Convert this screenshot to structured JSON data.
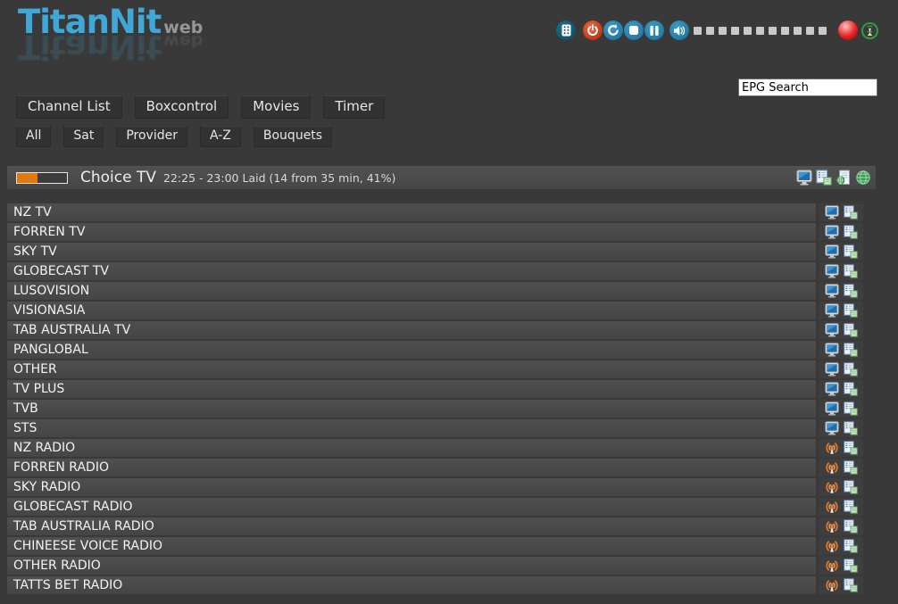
{
  "logo": {
    "title": "TitanNit",
    "suffix": "web"
  },
  "toolbar": {
    "volume_segments": 11,
    "icons": [
      "remote-control-icon",
      "power-icon",
      "restart-icon",
      "stop-icon",
      "pause-icon",
      "volume-icon",
      "record-indicator-icon",
      "signal-indicator-icon"
    ]
  },
  "search": {
    "value": "EPG Search"
  },
  "nav": {
    "main": [
      "Channel List",
      "Boxcontrol",
      "Movies",
      "Timer"
    ],
    "filters": [
      "All",
      "Sat",
      "Provider",
      "A-Z",
      "Bouquets"
    ]
  },
  "now_playing": {
    "channel": "Choice TV",
    "info": "22:25 - 23:00 Laid (14 from 35 min, 41%)",
    "progress_percent": 41,
    "action_icons": [
      "tv-screen-icon",
      "copy-epg-icon",
      "web-document-icon",
      "globe-icon"
    ]
  },
  "channels": [
    {
      "name": "NZ TV",
      "type": "tv"
    },
    {
      "name": "FORREN TV",
      "type": "tv"
    },
    {
      "name": "SKY TV",
      "type": "tv"
    },
    {
      "name": "GLOBECAST TV",
      "type": "tv"
    },
    {
      "name": "LUSOVISION",
      "type": "tv"
    },
    {
      "name": "VISIONASIA",
      "type": "tv"
    },
    {
      "name": "TAB AUSTRALIA TV",
      "type": "tv"
    },
    {
      "name": "PANGLOBAL",
      "type": "tv"
    },
    {
      "name": "OTHER",
      "type": "tv"
    },
    {
      "name": "TV PLUS",
      "type": "tv"
    },
    {
      "name": "TVB",
      "type": "tv"
    },
    {
      "name": "STS",
      "type": "tv"
    },
    {
      "name": "NZ RADIO",
      "type": "radio"
    },
    {
      "name": "FORREN RADIO",
      "type": "radio"
    },
    {
      "name": "SKY RADIO",
      "type": "radio"
    },
    {
      "name": "GLOBECAST RADIO",
      "type": "radio"
    },
    {
      "name": "TAB AUSTRALIA RADIO",
      "type": "radio"
    },
    {
      "name": "CHINEESE VOICE RADIO",
      "type": "radio"
    },
    {
      "name": "OTHER RADIO",
      "type": "radio"
    },
    {
      "name": "TATTS BET RADIO",
      "type": "radio"
    }
  ],
  "colors": {
    "background": "#393939",
    "row_bar": "#4a4a4a",
    "accent_blue": "#3fa8d8",
    "progress_orange": "#e0790f",
    "icon_blue": "#2e86ad",
    "power_red": "#c23a20",
    "record_red": "#ee2525",
    "signal_green": "#2f9e3f",
    "volume_square": "#c9c9c9"
  }
}
